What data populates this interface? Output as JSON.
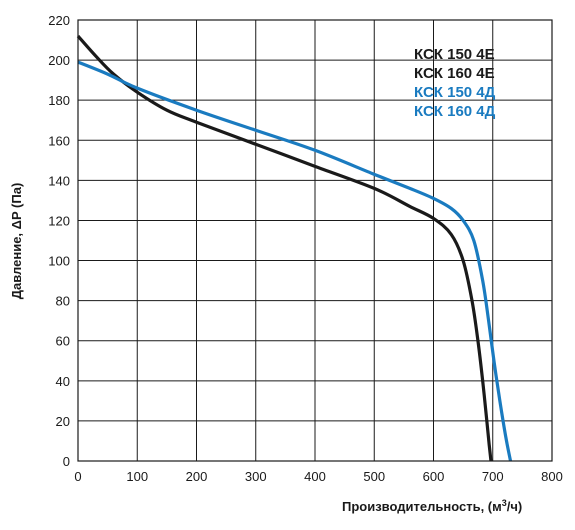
{
  "chart_data": {
    "type": "line",
    "xlabel": "Производительность, (м",
    "xlabel_sup": "3",
    "xlabel_end": "/ч)",
    "ylabel": "Давление, ΔP (Па)",
    "xlim": [
      0,
      800
    ],
    "ylim": [
      0,
      220
    ],
    "xticks": [
      "0",
      "100",
      "200",
      "300",
      "400",
      "500",
      "600",
      "700",
      "800"
    ],
    "yticks": [
      "0",
      "20",
      "40",
      "60",
      "80",
      "100",
      "120",
      "140",
      "160",
      "180",
      "200",
      "220"
    ],
    "grid": true,
    "legend_position": "top-right",
    "colors": {
      "black": "#1a1a1a",
      "blue": "#1a7bc0"
    },
    "series": [
      {
        "name_lines": [
          "КСК 150 4Е",
          "КСК 160 4Е"
        ],
        "color": "#1a1a1a",
        "points": [
          [
            0,
            212
          ],
          [
            30,
            202
          ],
          [
            60,
            193
          ],
          [
            100,
            184
          ],
          [
            150,
            175
          ],
          [
            200,
            169
          ],
          [
            300,
            158
          ],
          [
            400,
            147
          ],
          [
            500,
            136
          ],
          [
            560,
            127
          ],
          [
            600,
            121
          ],
          [
            630,
            113
          ],
          [
            650,
            100
          ],
          [
            665,
            80
          ],
          [
            675,
            60
          ],
          [
            683,
            40
          ],
          [
            690,
            20
          ],
          [
            694,
            8
          ],
          [
            697,
            0
          ]
        ]
      },
      {
        "name_lines": [
          "КСК 150 4Д",
          "КСК 160 4Д"
        ],
        "color": "#1a7bc0",
        "points": [
          [
            0,
            199
          ],
          [
            50,
            193
          ],
          [
            100,
            186
          ],
          [
            200,
            175
          ],
          [
            300,
            165
          ],
          [
            400,
            155
          ],
          [
            500,
            143
          ],
          [
            560,
            136
          ],
          [
            600,
            131
          ],
          [
            630,
            126
          ],
          [
            650,
            120
          ],
          [
            668,
            110
          ],
          [
            683,
            90
          ],
          [
            693,
            70
          ],
          [
            702,
            50
          ],
          [
            712,
            30
          ],
          [
            722,
            12
          ],
          [
            730,
            0
          ]
        ]
      }
    ]
  }
}
